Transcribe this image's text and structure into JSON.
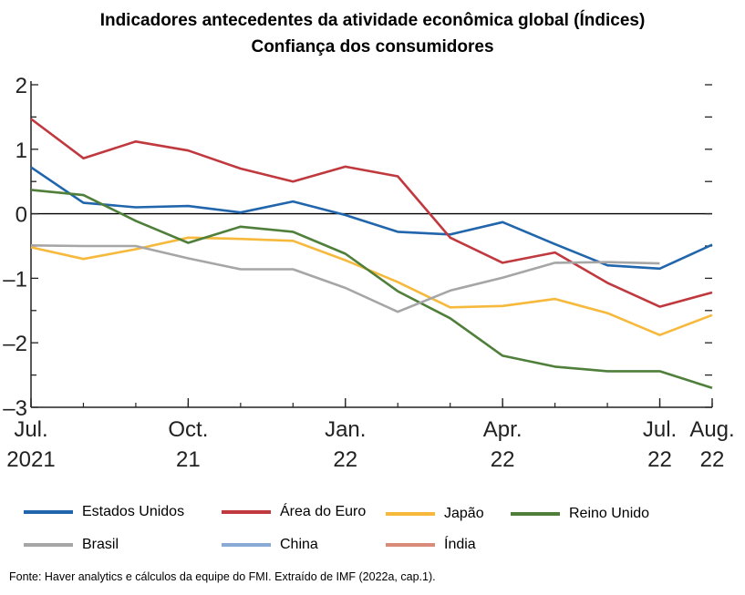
{
  "chart_data": {
    "type": "line",
    "title": "Indicadores antecedentes da atividade econômica global (Índices)",
    "subtitle": "Confiança dos consumidores",
    "x_ticks": [
      {
        "index": 0,
        "label": [
          "Jul.",
          "2021"
        ]
      },
      {
        "index": 3,
        "label": [
          "Oct.",
          "21"
        ]
      },
      {
        "index": 6,
        "label": [
          "Jan.",
          "22"
        ]
      },
      {
        "index": 9,
        "label": [
          "Apr.",
          "22"
        ]
      },
      {
        "index": 12,
        "label": [
          "Jul.",
          "22"
        ]
      },
      {
        "index": 13,
        "label": [
          "Aug.",
          "22"
        ]
      }
    ],
    "x_range": [
      0,
      13
    ],
    "ylim": [
      -3,
      2
    ],
    "y_ticks": [
      2,
      1,
      0,
      -1,
      -2,
      -3
    ],
    "y_tick_labels": [
      "2",
      "1",
      "0",
      "–1",
      "–2",
      "–3"
    ],
    "zero_line": true,
    "series": [
      {
        "name": "Estados Unidos",
        "color": "#2166ac",
        "values": [
          0.72,
          0.17,
          0.1,
          0.12,
          0.02,
          0.19,
          -0.02,
          -0.28,
          -0.32,
          -0.13,
          -0.47,
          -0.8,
          -0.85,
          -0.48
        ]
      },
      {
        "name": "Área do Euro",
        "color": "#c0393f",
        "values": [
          1.47,
          0.86,
          1.12,
          0.98,
          0.7,
          0.5,
          0.73,
          0.58,
          -0.37,
          -0.76,
          -0.6,
          -1.07,
          -1.44,
          -1.22
        ]
      },
      {
        "name": "Japão",
        "color": "#f6b93b",
        "values": [
          -0.52,
          -0.7,
          -0.55,
          -0.37,
          -0.39,
          -0.42,
          -0.72,
          -1.06,
          -1.45,
          -1.43,
          -1.32,
          -1.54,
          -1.88,
          -1.57
        ]
      },
      {
        "name": "Reino Unido",
        "color": "#4f7f3a",
        "values": [
          0.37,
          0.29,
          -0.11,
          -0.45,
          -0.2,
          -0.28,
          -0.62,
          -1.2,
          -1.62,
          -2.2,
          -2.37,
          -2.44,
          -2.44,
          -2.7
        ]
      },
      {
        "name": "Brasil",
        "color": "#a6a6a6",
        "values": [
          -0.49,
          -0.5,
          -0.5,
          -0.69,
          -0.86,
          -0.86,
          -1.15,
          -1.52,
          -1.19,
          -0.99,
          -0.76,
          -0.75,
          -0.77,
          null
        ]
      },
      {
        "name": "China",
        "color": "#8aaad6",
        "values": []
      },
      {
        "name": "Índia",
        "color": "#d98b7a",
        "values": []
      }
    ]
  },
  "footer": "Fonte: Haver analytics e cálculos da equipe do FMI.  Extraído de IMF (2022a, cap.1)."
}
